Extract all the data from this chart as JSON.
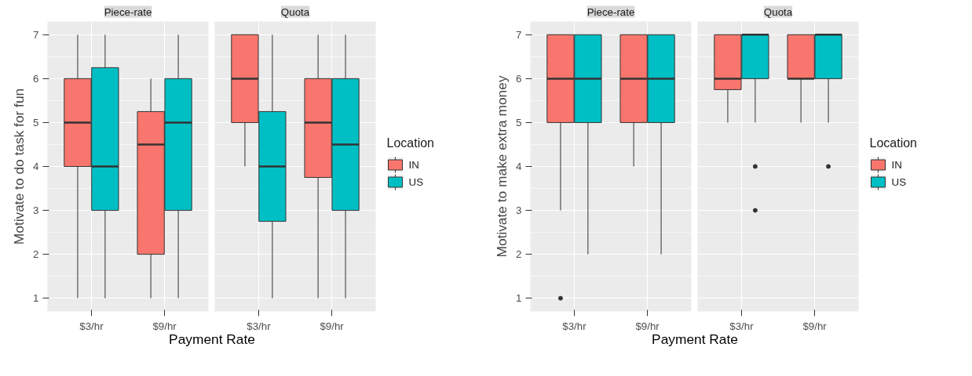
{
  "chart_data": [
    {
      "type": "box",
      "title": "Piece-rate",
      "ylabel": "Motivate to do task for fun",
      "xlabel": "Payment Rate",
      "categories": [
        "$3/hr",
        "$9/hr"
      ],
      "ylim": [
        0.7,
        7.3
      ],
      "yticks": [
        1,
        2,
        3,
        4,
        5,
        6,
        7
      ],
      "grid": true,
      "series": [
        {
          "color": "#f8766d",
          "boxes": [
            {
              "low": 1,
              "q1": 4,
              "median": 5,
              "q3": 6,
              "high": 7
            },
            {
              "low": 1,
              "q1": 2,
              "median": 4.5,
              "q3": 5.25,
              "high": 6
            }
          ]
        },
        {
          "color": "#00bfc4",
          "boxes": [
            {
              "low": 1,
              "q1": 3,
              "median": 4,
              "q3": 6.25,
              "high": 7
            },
            {
              "low": 1,
              "q1": 3,
              "median": 5,
              "q3": 6,
              "high": 7
            }
          ]
        }
      ]
    },
    {
      "type": "box",
      "title": "Quota",
      "legend_title": "Location",
      "legend": "right",
      "tick_labels": "x",
      "categories": [
        "$3/hr",
        "$9/hr"
      ],
      "ylim": [
        0.7,
        7.3
      ],
      "yticks": [
        1,
        2,
        3,
        4,
        5,
        6,
        7
      ],
      "grid": true,
      "series": [
        {
          "name": "IN",
          "color": "#f8766d",
          "boxes": [
            {
              "low": 4,
              "q1": 5,
              "median": 6,
              "q3": 7,
              "high": 7
            },
            {
              "low": 1,
              "q1": 3.75,
              "median": 5,
              "q3": 6,
              "high": 7
            }
          ]
        },
        {
          "name": "US",
          "color": "#00bfc4",
          "boxes": [
            {
              "low": 1,
              "q1": 2.75,
              "median": 4,
              "q3": 5.25,
              "high": 7
            },
            {
              "low": 1,
              "q1": 3,
              "median": 4.5,
              "q3": 6,
              "high": 7
            }
          ]
        }
      ]
    },
    {
      "type": "box",
      "title": "Piece-rate",
      "ylabel": "Motivate to make extra money",
      "xlabel": "Payment Rate",
      "categories": [
        "$3/hr",
        "$9/hr"
      ],
      "ylim": [
        0.7,
        7.3
      ],
      "yticks": [
        1,
        2,
        3,
        4,
        5,
        6,
        7
      ],
      "grid": true,
      "series": [
        {
          "color": "#f8766d",
          "boxes": [
            {
              "low": 3,
              "q1": 5,
              "median": 6,
              "q3": 7,
              "high": 7,
              "outliers": [
                1
              ]
            },
            {
              "low": 4,
              "q1": 5,
              "median": 6,
              "q3": 7,
              "high": 7
            }
          ]
        },
        {
          "color": "#00bfc4",
          "boxes": [
            {
              "low": 2,
              "q1": 5,
              "median": 6,
              "q3": 7,
              "high": 7
            },
            {
              "low": 2,
              "q1": 5,
              "median": 6,
              "q3": 7,
              "high": 7
            }
          ]
        }
      ]
    },
    {
      "type": "box",
      "title": "Quota",
      "legend_title": "Location",
      "legend": "right",
      "tick_labels": "x",
      "categories": [
        "$3/hr",
        "$9/hr"
      ],
      "ylim": [
        0.7,
        7.3
      ],
      "yticks": [
        1,
        2,
        3,
        4,
        5,
        6,
        7
      ],
      "grid": true,
      "series": [
        {
          "name": "IN",
          "color": "#f8766d",
          "boxes": [
            {
              "low": 5,
              "q1": 5.75,
              "median": 6,
              "q3": 7,
              "high": 7
            },
            {
              "low": 5,
              "q1": 6,
              "median": 6,
              "q3": 7,
              "high": 7
            }
          ]
        },
        {
          "name": "US",
          "color": "#00bfc4",
          "boxes": [
            {
              "low": 5,
              "q1": 6,
              "median": 7,
              "q3": 7,
              "high": 7,
              "outliers": [
                4,
                3
              ]
            },
            {
              "low": 5,
              "q1": 6,
              "median": 7,
              "q3": 7,
              "high": 7,
              "outliers": [
                4
              ]
            }
          ]
        }
      ]
    }
  ]
}
